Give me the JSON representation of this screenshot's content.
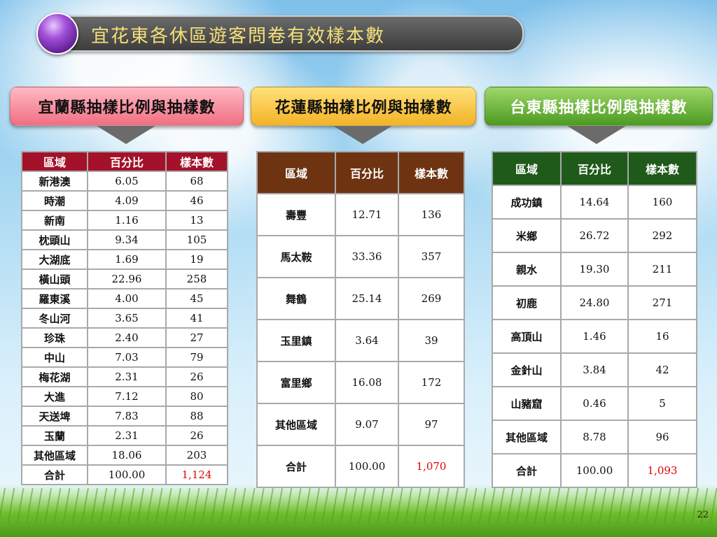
{
  "title": "宜花東各休區遊客問卷有效樣本數",
  "sections": {
    "yilan": {
      "heading": "宜蘭縣抽樣比例與抽樣數",
      "headers": [
        "區域",
        "百分比",
        "樣本數"
      ],
      "rows": [
        [
          "新港澳",
          "6.05",
          "68"
        ],
        [
          "時潮",
          "4.09",
          "46"
        ],
        [
          "新南",
          "1.16",
          "13"
        ],
        [
          "枕頭山",
          "9.34",
          "105"
        ],
        [
          "大湖底",
          "1.69",
          "19"
        ],
        [
          "橫山頭",
          "22.96",
          "258"
        ],
        [
          "羅東溪",
          "4.00",
          "45"
        ],
        [
          "冬山河",
          "3.65",
          "41"
        ],
        [
          "珍珠",
          "2.40",
          "27"
        ],
        [
          "中山",
          "7.03",
          "79"
        ],
        [
          "梅花湖",
          "2.31",
          "26"
        ],
        [
          "大進",
          "7.12",
          "80"
        ],
        [
          "天送埤",
          "7.83",
          "88"
        ],
        [
          "玉蘭",
          "2.31",
          "26"
        ],
        [
          "其他區域",
          "18.06",
          "203"
        ]
      ],
      "total": [
        "合計",
        "100.00",
        "1,124"
      ]
    },
    "hualien": {
      "heading": "花蓮縣抽樣比例與抽樣數",
      "headers": [
        "區域",
        "百分比",
        "樣本數"
      ],
      "rows": [
        [
          "壽豐",
          "12.71",
          "136"
        ],
        [
          "馬太鞍",
          "33.36",
          "357"
        ],
        [
          "舞鶴",
          "25.14",
          "269"
        ],
        [
          "玉里鎮",
          "3.64",
          "39"
        ],
        [
          "富里鄉",
          "16.08",
          "172"
        ],
        [
          "其他區域",
          "9.07",
          "97"
        ]
      ],
      "total": [
        "合計",
        "100.00",
        "1,070"
      ]
    },
    "taitung": {
      "heading": "台東縣抽樣比例與抽樣數",
      "headers": [
        "區域",
        "百分比",
        "樣本數"
      ],
      "rows": [
        [
          "成功鎮",
          "14.64",
          "160"
        ],
        [
          "米鄉",
          "26.72",
          "292"
        ],
        [
          "親水",
          "19.30",
          "211"
        ],
        [
          "初鹿",
          "24.80",
          "271"
        ],
        [
          "高頂山",
          "1.46",
          "16"
        ],
        [
          "金針山",
          "3.84",
          "42"
        ],
        [
          "山豬窟",
          "0.46",
          "5"
        ],
        [
          "其他區域",
          "8.78",
          "96"
        ]
      ],
      "total": [
        "合計",
        "100.00",
        "1,093"
      ]
    }
  },
  "page_number": "22"
}
